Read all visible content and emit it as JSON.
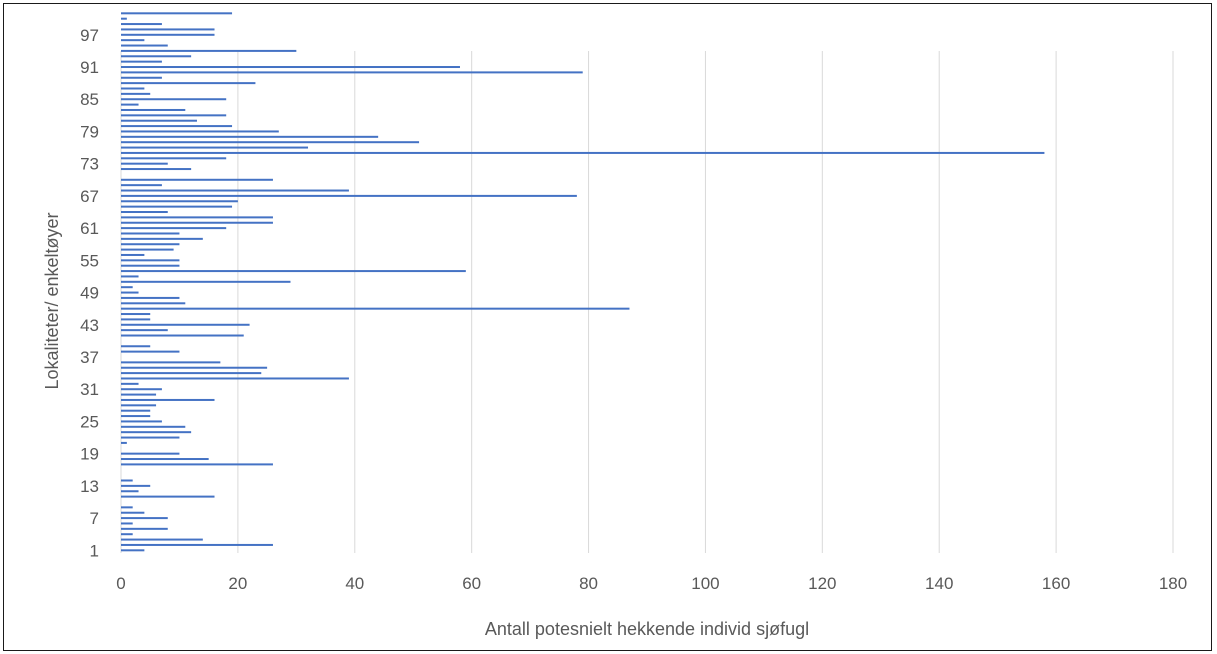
{
  "chart_data": {
    "type": "bar",
    "orientation": "horizontal",
    "xlabel": "Antall potesnielt hekkende individ sjøfugl",
    "ylabel": "Lokaliteter/ enkeltøyer",
    "xlim": [
      0,
      180
    ],
    "x_ticks": [
      0,
      20,
      40,
      60,
      80,
      100,
      120,
      140,
      160,
      180
    ],
    "y_tick_labels": [
      "1",
      "7",
      "13",
      "19",
      "25",
      "31",
      "37",
      "43",
      "49",
      "55",
      "61",
      "67",
      "73",
      "79",
      "85",
      "91",
      "97"
    ],
    "grid": "vertical",
    "legend": "none",
    "bar_color": "#4472C4",
    "categories": [
      1,
      2,
      3,
      4,
      5,
      6,
      7,
      8,
      9,
      10,
      11,
      12,
      13,
      14,
      15,
      16,
      17,
      18,
      19,
      20,
      21,
      22,
      23,
      24,
      25,
      26,
      27,
      28,
      29,
      30,
      31,
      32,
      33,
      34,
      35,
      36,
      37,
      38,
      39,
      40,
      41,
      42,
      43,
      44,
      45,
      46,
      47,
      48,
      49,
      50,
      51,
      52,
      53,
      54,
      55,
      56,
      57,
      58,
      59,
      60,
      61,
      62,
      63,
      64,
      65,
      66,
      67,
      68,
      69,
      70,
      71,
      72,
      73,
      74,
      75,
      76,
      77,
      78,
      79,
      80,
      81,
      82,
      83,
      84,
      85,
      86,
      87,
      88,
      89,
      90,
      91,
      92,
      93,
      94,
      95,
      96,
      97,
      98,
      99,
      100,
      101
    ],
    "values": [
      4,
      26,
      14,
      2,
      8,
      2,
      8,
      4,
      2,
      0,
      16,
      3,
      5,
      2,
      0,
      0,
      26,
      15,
      10,
      0,
      1,
      10,
      12,
      11,
      7,
      5,
      5,
      6,
      16,
      6,
      7,
      3,
      39,
      24,
      25,
      17,
      0,
      10,
      5,
      0,
      21,
      8,
      22,
      5,
      5,
      87,
      11,
      10,
      3,
      2,
      29,
      3,
      59,
      10,
      10,
      4,
      9,
      10,
      14,
      10,
      18,
      26,
      26,
      8,
      19,
      20,
      78,
      39,
      7,
      26,
      0,
      12,
      8,
      18,
      158,
      32,
      51,
      44,
      27,
      19,
      13,
      18,
      11,
      3,
      18,
      5,
      4,
      23,
      7,
      79,
      58,
      7,
      12,
      30,
      8,
      4,
      16,
      16,
      7,
      1,
      19
    ]
  }
}
